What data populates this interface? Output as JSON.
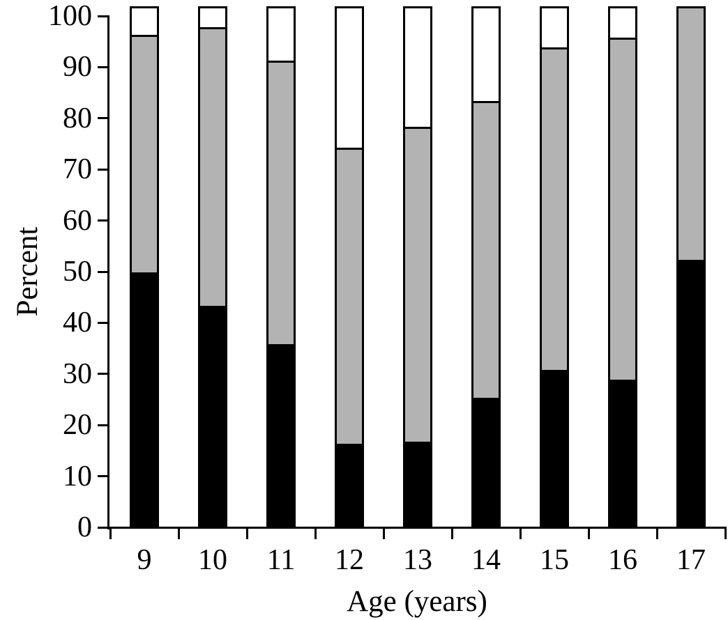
{
  "chart_data": {
    "type": "bar",
    "stacked": true,
    "percent_stacked": true,
    "title": "",
    "xlabel": "Age (years)",
    "ylabel": "Percent",
    "categories": [
      "9",
      "10",
      "11",
      "12",
      "13",
      "14",
      "15",
      "16",
      "17"
    ],
    "series": [
      {
        "name": "black-bottom-segment",
        "color": "#000000",
        "values": [
          49,
          42.5,
          35,
          15.5,
          16,
          24.5,
          30,
          28,
          51.5
        ]
      },
      {
        "name": "grey-middle-segment",
        "color": "#b3b3b3",
        "values": [
          46.5,
          54.5,
          55.5,
          58,
          61.5,
          58,
          63,
          67,
          48.5
        ]
      },
      {
        "name": "white-top-segment",
        "color": "#ffffff",
        "values": [
          4.5,
          3,
          9.5,
          26.5,
          22.5,
          17.5,
          7,
          5,
          0
        ]
      }
    ],
    "ylim": [
      0,
      100
    ],
    "yticks": [
      0,
      10,
      20,
      30,
      40,
      50,
      60,
      70,
      80,
      90,
      100
    ],
    "grid": false,
    "legend": null,
    "bar_outline_color": "#000000",
    "background_color": "#ffffff"
  }
}
